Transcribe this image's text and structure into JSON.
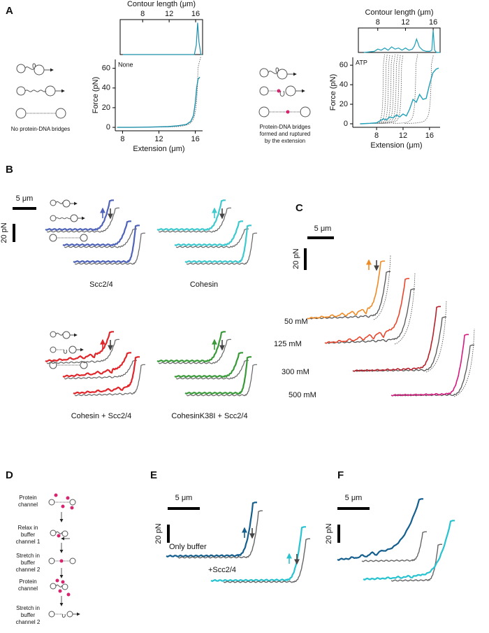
{
  "panel_labels": [
    "A",
    "B",
    "C",
    "D",
    "E",
    "F"
  ],
  "chart_data": [
    {
      "type": "line",
      "annotation": "None",
      "xlabel": "Extension (μm)",
      "ylabel": "Force (pN)",
      "x": [
        7.4,
        9,
        11,
        13,
        14,
        15,
        15.5,
        15.8,
        16,
        16.15,
        16.3,
        16.5
      ],
      "values": [
        0,
        0,
        0.3,
        0.8,
        1.5,
        3,
        6,
        12,
        25,
        40,
        49,
        51
      ],
      "color": "#1f8fab",
      "xlim": [
        7.2,
        16.8
      ],
      "ylim": [
        -3.5,
        69
      ],
      "xticks": [
        8,
        12,
        16
      ],
      "yticks": [
        0,
        20,
        40,
        60
      ],
      "fit_contour_lengths": [
        16.6
      ],
      "contour": {
        "xlabel": "Contour length (μm)",
        "x": [
          5,
          8,
          12,
          15.8,
          16.1,
          16.3,
          16.5,
          16.8,
          17
        ],
        "values": [
          0,
          0,
          0,
          0,
          0.3,
          1,
          0.4,
          0,
          0
        ],
        "xlim": [
          4.6,
          17.05
        ],
        "ylim": [
          0,
          1.1
        ],
        "xticks": [
          8,
          12,
          16
        ]
      }
    },
    {
      "type": "line",
      "annotation": "ATP",
      "xlabel": "Extension (μm)",
      "ylabel": "Force (pN)",
      "x": [
        5.5,
        7,
        8,
        8.5,
        9,
        9.5,
        10,
        10.5,
        11,
        11.5,
        12,
        12.5,
        13,
        13.5,
        14,
        14.5,
        15,
        15.5,
        16,
        16.5,
        17,
        17.4
      ],
      "values": [
        0,
        0.5,
        1,
        3,
        5,
        4,
        7,
        6,
        9,
        7,
        10,
        8,
        15,
        25,
        22,
        30,
        25,
        26,
        40,
        52,
        56,
        57
      ],
      "color": "#1f9fb8",
      "xlim": [
        4.4,
        17.6
      ],
      "ylim": [
        -3.6,
        68
      ],
      "xticks": [
        8,
        12,
        16
      ],
      "yticks": [
        0,
        20,
        40,
        60
      ],
      "fit_contour_lengths": [
        9.2,
        9.6,
        10,
        10.4,
        10.8,
        11.2,
        11.6,
        12,
        14.2,
        16.6
      ],
      "contour": {
        "xlabel": "Contour length (μm)",
        "x": [
          6,
          7.5,
          8,
          8.5,
          9,
          9.5,
          10,
          10.5,
          11,
          11.5,
          12,
          12.5,
          13,
          13.3,
          13.6,
          14,
          14.5,
          15,
          15.5,
          15.8,
          16,
          16.2,
          16.5,
          17
        ],
        "values": [
          0,
          0.05,
          0.15,
          0.1,
          0.2,
          0.1,
          0.25,
          0.15,
          0.2,
          0.1,
          0.2,
          0.1,
          0.15,
          0.3,
          0.6,
          0.25,
          0.1,
          0.05,
          0.05,
          0.1,
          1,
          0.1,
          0,
          0
        ],
        "xlim": [
          5.2,
          17.0
        ],
        "ylim": [
          0,
          1.1
        ],
        "xticks": [
          8,
          12,
          16
        ]
      }
    }
  ],
  "panel_a": {
    "left_caption": "No protein-DNA bridges",
    "right_caption": [
      "Protein-DNA bridges",
      "formed and ruptured",
      "by the extension"
    ]
  },
  "panel_b": {
    "scale_x": "5 μm",
    "scale_y": "20 pN",
    "labels": [
      "Scc2/4",
      "Cohesin",
      "Cohesin + Scc2/4",
      "CohesinK38I + Scc2/4"
    ]
  },
  "panel_c": {
    "scale_x": "5 μm",
    "scale_y": "20 pN",
    "salt": [
      "50 mM",
      "125 mM",
      "300 mM",
      "500 mM"
    ]
  },
  "panel_d": {
    "steps": [
      [
        "Protein",
        "channel"
      ],
      [
        "Relax in",
        "buffer",
        "channel 1"
      ],
      [
        "Stretch in",
        "buffer",
        "channel 2"
      ],
      [
        "Protein",
        "channel"
      ],
      [
        "Stretch in",
        "buffer",
        "channel 2"
      ]
    ]
  },
  "panel_e": {
    "scale_x": "5 μm",
    "scale_y": "20 pN",
    "labels": [
      "Only buffer",
      "+Scc2/4"
    ]
  },
  "panel_f": {
    "scale_x": "5 μm",
    "scale_y": "20 pN"
  }
}
